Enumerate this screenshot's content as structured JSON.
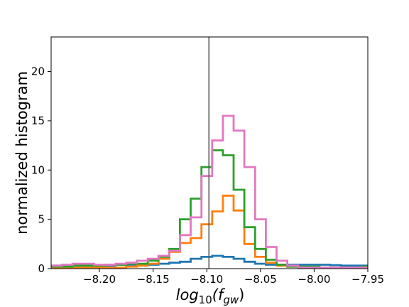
{
  "chart_data": {
    "type": "histogram",
    "title": "",
    "xlabel_base": "log",
    "xlabel_sub1": "10",
    "xlabel_paren_open": "(f",
    "xlabel_sub2": "gw",
    "xlabel_paren_close": ")",
    "ylabel": "normalized histogram",
    "xlim": [
      -8.245,
      -7.95
    ],
    "ylim": [
      0,
      23.5
    ],
    "xticks": [
      -8.2,
      -8.15,
      -8.1,
      -8.05,
      -8.0,
      -7.95
    ],
    "xtick_labels": [
      "−8.20",
      "−8.15",
      "−8.10",
      "−8.05",
      "−8.00",
      "−7.95"
    ],
    "yticks": [
      0,
      5,
      10,
      15,
      20
    ],
    "ytick_labels": [
      "0",
      "5",
      "10",
      "15",
      "20"
    ],
    "grid": false,
    "reference_line_x": -8.098,
    "bin_edges": [
      -8.245,
      -8.235,
      -8.225,
      -8.215,
      -8.205,
      -8.195,
      -8.185,
      -8.175,
      -8.165,
      -8.155,
      -8.145,
      -8.135,
      -8.125,
      -8.115,
      -8.105,
      -8.095,
      -8.085,
      -8.075,
      -8.065,
      -8.055,
      -8.045,
      -8.035,
      -8.025,
      -8.015,
      -8.005,
      -7.995,
      -7.985,
      -7.975,
      -7.965,
      -7.955,
      -7.95
    ],
    "series": [
      {
        "color": "#1f77b4",
        "values": [
          0.3,
          0.3,
          0.3,
          0.3,
          0.3,
          0.3,
          0.4,
          0.4,
          0.4,
          0.4,
          0.5,
          0.6,
          0.7,
          1.0,
          1.2,
          1.3,
          1.2,
          1.0,
          0.7,
          0.5,
          0.4,
          0.4,
          0.4,
          0.4,
          0.4,
          0.4,
          0.35,
          0.3,
          0.3,
          0.3
        ]
      },
      {
        "color": "#ff7f0e",
        "values": [
          0.1,
          0.1,
          0.1,
          0.1,
          0.1,
          0.1,
          0.1,
          0.2,
          0.3,
          0.5,
          1.0,
          1.7,
          2.6,
          3.1,
          4.5,
          5.8,
          7.4,
          5.9,
          2.5,
          1.2,
          0.6,
          0.3,
          0.2,
          0.1,
          0.1,
          0.1,
          0.1,
          0.1,
          0.1,
          0.1
        ]
      },
      {
        "color": "#2ca02c",
        "values": [
          0.2,
          0.2,
          0.3,
          0.3,
          0.3,
          0.4,
          0.4,
          0.5,
          0.5,
          0.8,
          1.2,
          2.0,
          5.0,
          7.1,
          10.3,
          12.0,
          11.5,
          8.0,
          4.2,
          2.0,
          0.9,
          0.4,
          0.2,
          0.2,
          0.2,
          0.1,
          0.1,
          0.1,
          0.1,
          0.2
        ]
      },
      {
        "color": "#e377c2",
        "values": [
          0.3,
          0.4,
          0.5,
          0.5,
          0.4,
          0.4,
          0.5,
          0.6,
          0.8,
          1.0,
          1.3,
          1.8,
          3.4,
          5.2,
          9.4,
          13.0,
          15.5,
          14.0,
          10.3,
          5.0,
          2.2,
          0.8,
          0.3,
          0.1,
          0.1,
          0.1,
          0.1,
          0.1,
          0.1,
          0.1
        ]
      }
    ]
  }
}
